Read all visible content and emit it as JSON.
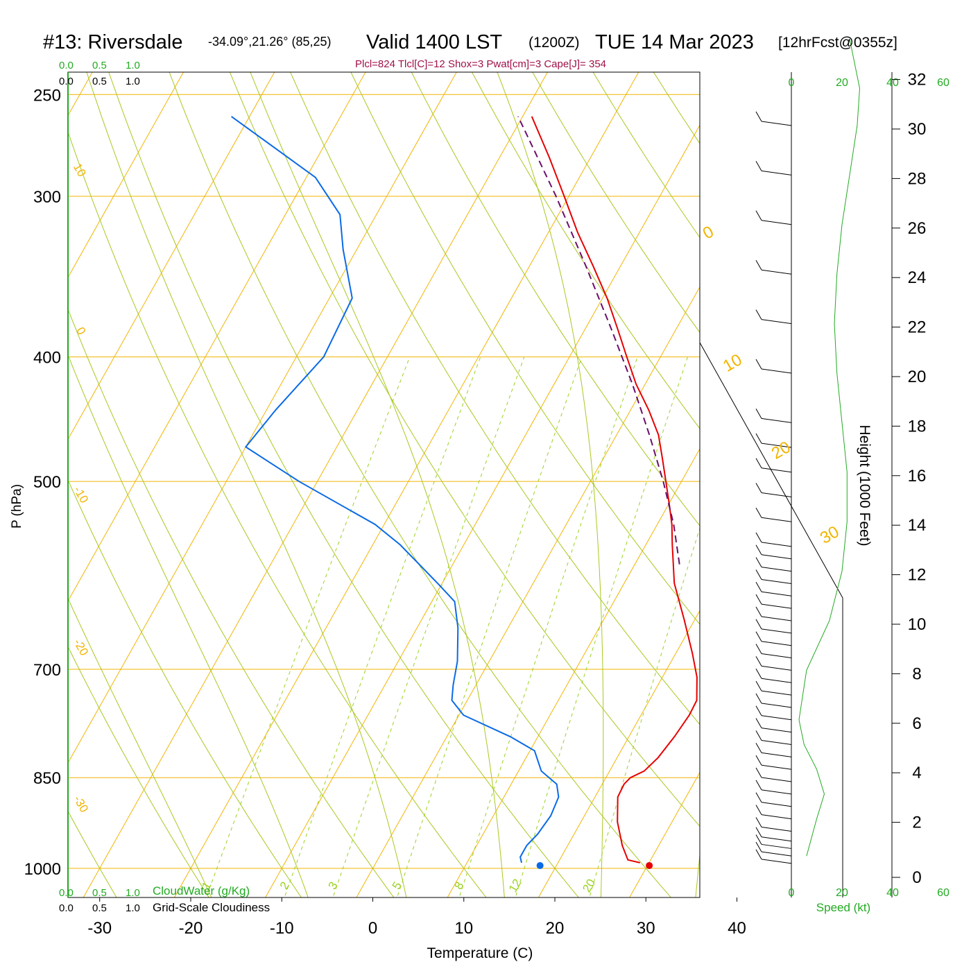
{
  "header": {
    "station": "#13: Riversdale",
    "coords": "-34.09°,21.26° (85,25)",
    "valid": "Valid 1400 LST",
    "utc": "(1200Z)",
    "date": "TUE 14 Mar 2023",
    "forecast": "[12hrFcst@0355z]",
    "indices": "Plcl=824 Tlcl[C]=12 Shox=3 Pwat[cm]=3 Cape[J]= 354"
  },
  "colors": {
    "temperature": "#e60000",
    "dewpoint": "#0a6ae6",
    "parcel": "#6a0f6a",
    "isobar": "#f2b400",
    "isotherm": "#f2b400",
    "dry_adiabat": "#a8c820",
    "moist_adiabat": "#a8c820",
    "mixing_ratio": "#9ad21e",
    "green_text": "#22aa22",
    "indices_text": "#a0104a"
  },
  "chart_data": {
    "type": "skew-t",
    "xlabel": "Temperature (C)",
    "ylabel": "P (hPa)",
    "right_axis_label": "Height (1000 Feet)",
    "x_ticks": [
      -30,
      -20,
      -10,
      0,
      10,
      20,
      30,
      40
    ],
    "pressure_levels": [
      250,
      300,
      400,
      500,
      700,
      850,
      1000
    ],
    "height_ticks_kft": [
      0,
      2,
      4,
      6,
      8,
      10,
      12,
      14,
      16,
      18,
      20,
      22,
      24,
      26,
      28,
      30,
      32
    ],
    "isotherm_labels": [
      "10",
      "0",
      "-10",
      "-20",
      "-30",
      "0",
      "10",
      "20",
      "30"
    ],
    "mixing_ratio_labels": [
      "1",
      "2",
      "3",
      "5",
      "8",
      "12",
      "20"
    ],
    "temperature_profile": [
      {
        "p": 990,
        "t": 29.0
      },
      {
        "p": 985,
        "t": 27.5
      },
      {
        "p": 960,
        "t": 26.0
      },
      {
        "p": 920,
        "t": 24.0
      },
      {
        "p": 880,
        "t": 22.5
      },
      {
        "p": 860,
        "t": 22.4
      },
      {
        "p": 850,
        "t": 22.7
      },
      {
        "p": 840,
        "t": 23.8
      },
      {
        "p": 820,
        "t": 24.5
      },
      {
        "p": 790,
        "t": 25.0
      },
      {
        "p": 760,
        "t": 25.3
      },
      {
        "p": 740,
        "t": 25.2
      },
      {
        "p": 710,
        "t": 23.8
      },
      {
        "p": 680,
        "t": 21.8
      },
      {
        "p": 640,
        "t": 18.8
      },
      {
        "p": 600,
        "t": 15.5
      },
      {
        "p": 560,
        "t": 12.9
      },
      {
        "p": 540,
        "t": 11.6
      },
      {
        "p": 520,
        "t": 10.0
      },
      {
        "p": 480,
        "t": 6.5
      },
      {
        "p": 460,
        "t": 4.6
      },
      {
        "p": 440,
        "t": 2.0
      },
      {
        "p": 420,
        "t": -1.0
      },
      {
        "p": 400,
        "t": -3.7
      },
      {
        "p": 380,
        "t": -6.5
      },
      {
        "p": 360,
        "t": -9.5
      },
      {
        "p": 340,
        "t": -13.0
      },
      {
        "p": 320,
        "t": -16.8
      },
      {
        "p": 300,
        "t": -20.5
      },
      {
        "p": 280,
        "t": -24.5
      },
      {
        "p": 260,
        "t": -29.0
      }
    ],
    "dewpoint_profile": [
      {
        "p": 990,
        "t": 16.0
      },
      {
        "p": 980,
        "t": 15.5
      },
      {
        "p": 960,
        "t": 15.5
      },
      {
        "p": 940,
        "t": 16.0
      },
      {
        "p": 910,
        "t": 16.3
      },
      {
        "p": 880,
        "t": 16.0
      },
      {
        "p": 860,
        "t": 15.0
      },
      {
        "p": 840,
        "t": 12.5
      },
      {
        "p": 810,
        "t": 10.5
      },
      {
        "p": 790,
        "t": 7.0
      },
      {
        "p": 760,
        "t": 0.5
      },
      {
        "p": 740,
        "t": -1.7
      },
      {
        "p": 720,
        "t": -2.5
      },
      {
        "p": 690,
        "t": -3.5
      },
      {
        "p": 650,
        "t": -5.5
      },
      {
        "p": 620,
        "t": -7.5
      },
      {
        "p": 600,
        "t": -10.5
      },
      {
        "p": 560,
        "t": -17.0
      },
      {
        "p": 540,
        "t": -21.0
      },
      {
        "p": 500,
        "t": -32.0
      },
      {
        "p": 470,
        "t": -40.0
      },
      {
        "p": 440,
        "t": -39.0
      },
      {
        "p": 400,
        "t": -37.0
      },
      {
        "p": 360,
        "t": -37.5
      },
      {
        "p": 330,
        "t": -41.5
      },
      {
        "p": 310,
        "t": -44.0
      },
      {
        "p": 290,
        "t": -49.0
      },
      {
        "p": 260,
        "t": -62.0
      }
    ],
    "parcel_profile": [
      {
        "p": 580,
        "t": 14.9
      },
      {
        "p": 540,
        "t": 11.8
      },
      {
        "p": 500,
        "t": 8.0
      },
      {
        "p": 460,
        "t": 3.6
      },
      {
        "p": 420,
        "t": -1.4
      },
      {
        "p": 380,
        "t": -7.2
      },
      {
        "p": 340,
        "t": -13.8
      },
      {
        "p": 300,
        "t": -21.4
      },
      {
        "p": 260,
        "t": -30.5
      }
    ],
    "surface_temp_marker": {
      "p": 995,
      "t": 30.2
    },
    "surface_dewpoint_marker": {
      "p": 995,
      "t": 18.2
    },
    "wind_speed_profile": [
      {
        "h": 0.5,
        "kt": 6
      },
      {
        "h": 2,
        "kt": 10
      },
      {
        "h": 3,
        "kt": 13
      },
      {
        "h": 4,
        "kt": 10
      },
      {
        "h": 5,
        "kt": 5
      },
      {
        "h": 6,
        "kt": 3
      },
      {
        "h": 8,
        "kt": 6
      },
      {
        "h": 10,
        "kt": 15
      },
      {
        "h": 12,
        "kt": 20
      },
      {
        "h": 14,
        "kt": 22
      },
      {
        "h": 16,
        "kt": 22
      },
      {
        "h": 18,
        "kt": 20
      },
      {
        "h": 20,
        "kt": 18
      },
      {
        "h": 22,
        "kt": 17
      },
      {
        "h": 24,
        "kt": 18
      },
      {
        "h": 26,
        "kt": 20
      },
      {
        "h": 28,
        "kt": 23
      },
      {
        "h": 30,
        "kt": 26
      },
      {
        "h": 31.5,
        "kt": 27
      },
      {
        "h": 33.5,
        "kt": 23
      }
    ],
    "wind_speed_axis": [
      0,
      20,
      40,
      60
    ],
    "wind_speed_label": "Speed (kt)",
    "barb_heights_kft": [
      0.2,
      0.5,
      0.8,
      1.1,
      1.5,
      2,
      2.5,
      3,
      3.5,
      4,
      4.5,
      5,
      5.5,
      6,
      6.5,
      7,
      7.5,
      8,
      8.5,
      9,
      9.5,
      10,
      10.5,
      11,
      11.5,
      12,
      12.5,
      13,
      14,
      15,
      16,
      17,
      18,
      20,
      22,
      24,
      26,
      28,
      30,
      32
    ]
  },
  "cloud_scale": {
    "ticks": [
      "0.0",
      "0.5",
      "1.0"
    ],
    "cloudwater_label": "CloudWater (g/Kg)",
    "cloudiness_label": "Grid-Scale Cloudiness"
  }
}
